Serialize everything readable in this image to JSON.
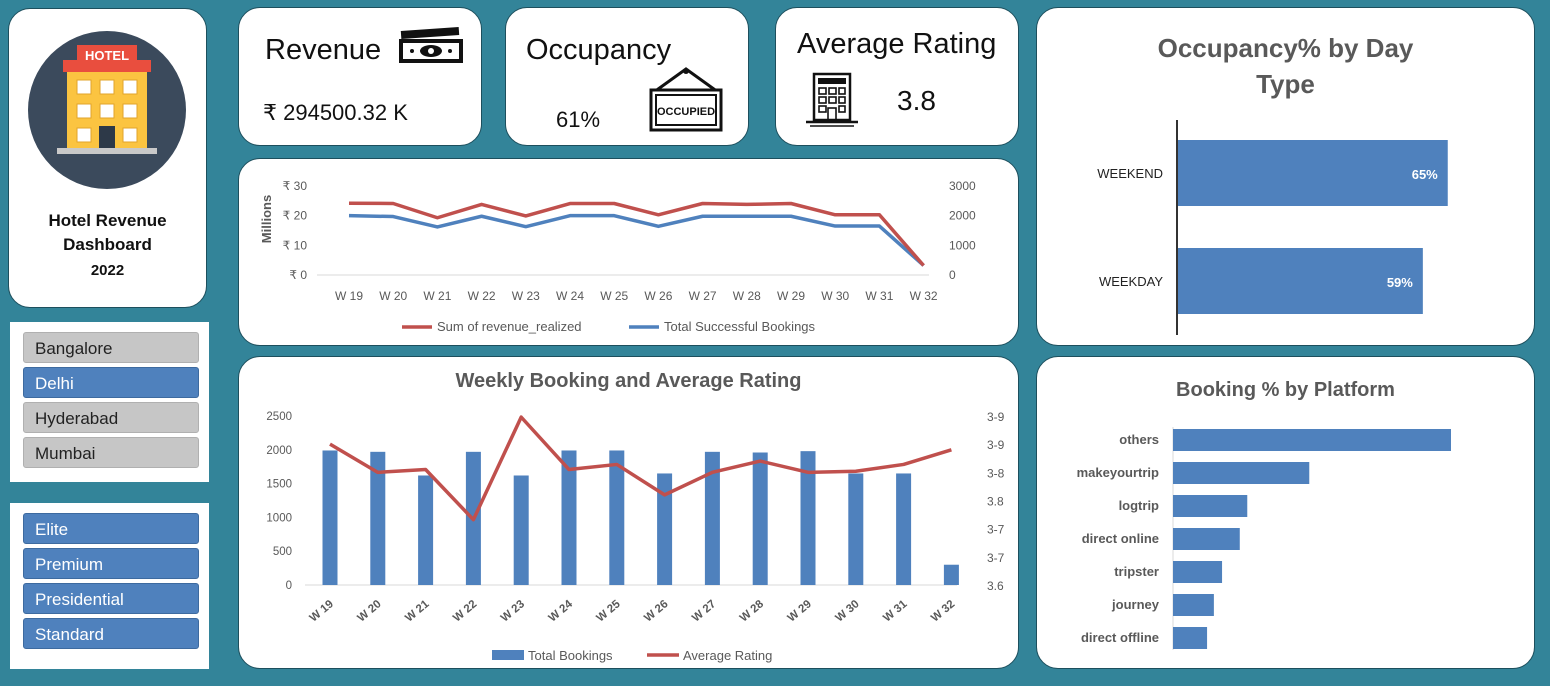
{
  "logo": {
    "sign_text": "HOTEL",
    "title_line1": "Hotel Revenue",
    "title_line2": "Dashboard",
    "year": "2022"
  },
  "kpis": {
    "revenue": {
      "label": "Revenue",
      "value": "₹ 294500.32 K"
    },
    "occupancy": {
      "label": "Occupancy",
      "value": "61%",
      "sign_text": "OCCUPIED"
    },
    "rating": {
      "label": "Average Rating",
      "value": "3.8"
    }
  },
  "city_slicer": {
    "items": [
      {
        "label": "Bangalore",
        "selected": false
      },
      {
        "label": "Delhi",
        "selected": true
      },
      {
        "label": "Hyderabad",
        "selected": false
      },
      {
        "label": "Mumbai",
        "selected": false
      }
    ]
  },
  "room_slicer": {
    "items": [
      {
        "label": "Elite",
        "selected": true
      },
      {
        "label": "Premium",
        "selected": true
      },
      {
        "label": "Presidential",
        "selected": true
      },
      {
        "label": "Standard",
        "selected": true
      }
    ]
  },
  "colors": {
    "teal_bg": "#338499",
    "blue": "#4f81bd",
    "red": "#c0504d",
    "grey_title": "#595959"
  },
  "chart_data": [
    {
      "type": "line",
      "title": "",
      "categories": [
        "W 19",
        "W 20",
        "W 21",
        "W 22",
        "W 23",
        "W 24",
        "W 25",
        "W 26",
        "W 27",
        "W 28",
        "W 29",
        "W 30",
        "W 31",
        "W 32"
      ],
      "y_left": {
        "label": "Millions",
        "ticks": [
          "₹ 0",
          "₹ 10",
          "₹ 20",
          "₹ 30"
        ],
        "ylim": [
          0,
          30
        ]
      },
      "y_right": {
        "ticks": [
          "0",
          "1000",
          "2000",
          "3000"
        ],
        "ylim": [
          0,
          3000
        ]
      },
      "series": [
        {
          "name": "Sum of revenue_realized",
          "axis": "left",
          "values": [
            24.2,
            24.1,
            19.3,
            23.8,
            19.9,
            24.1,
            24.1,
            20.3,
            24.1,
            23.8,
            24.1,
            20.3,
            20.3,
            3.2
          ]
        },
        {
          "name": "Total Successful Bookings",
          "axis": "right",
          "values": [
            2000,
            1970,
            1620,
            1980,
            1630,
            2000,
            2000,
            1640,
            1980,
            1980,
            1980,
            1650,
            1650,
            320
          ]
        }
      ],
      "legend": "bottom"
    },
    {
      "type": "bar",
      "title": "Weekly Booking and Average Rating",
      "categories": [
        "W 19",
        "W 20",
        "W 21",
        "W 22",
        "W 23",
        "W 24",
        "W 25",
        "W 26",
        "W 27",
        "W 28",
        "W 29",
        "W 30",
        "W 31",
        "W 32"
      ],
      "y_left": {
        "ticks": [
          "0",
          "500",
          "1000",
          "1500",
          "2000",
          "2500"
        ],
        "ylim": [
          0,
          2500
        ]
      },
      "y_right": {
        "ticks": [
          "3.6",
          "3-7",
          "3-7",
          "3.8",
          "3-8",
          "3-9",
          "3-9"
        ],
        "ylim": [
          3.6,
          3.9
        ]
      },
      "series": [
        {
          "name": "Total Bookings",
          "kind": "bar",
          "axis": "left",
          "values": [
            1990,
            1970,
            1620,
            1970,
            1620,
            1990,
            1990,
            1650,
            1970,
            1960,
            1980,
            1650,
            1650,
            300
          ]
        },
        {
          "name": "Average Rating",
          "kind": "line",
          "axis": "right",
          "values": [
            3.85,
            3.8,
            3.805,
            3.716,
            3.898,
            3.805,
            3.814,
            3.76,
            3.8,
            3.82,
            3.8,
            3.802,
            3.814,
            3.84
          ]
        }
      ],
      "legend": "bottom"
    },
    {
      "type": "bar",
      "orientation": "horizontal",
      "title": "Occupancy% by Day Type",
      "categories": [
        "WEEKEND",
        "WEEKDAY"
      ],
      "values": [
        65,
        59
      ],
      "value_labels": [
        "65%",
        "59%"
      ],
      "xlim": [
        0,
        100
      ]
    },
    {
      "type": "bar",
      "orientation": "horizontal",
      "title": "Booking % by Platform",
      "categories": [
        "others",
        "makeyourtrip",
        "logtrip",
        "direct online",
        "tripster",
        "journey",
        "direct offline"
      ],
      "values": [
        40.8,
        20.0,
        10.9,
        9.8,
        7.2,
        6.0,
        5.0
      ]
    }
  ]
}
